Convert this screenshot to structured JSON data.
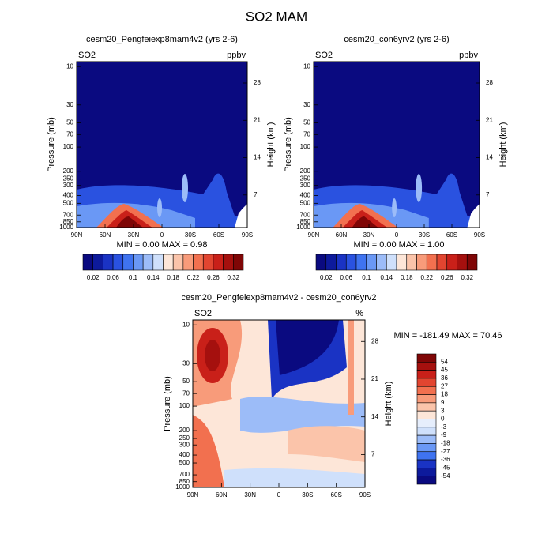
{
  "title": "SO2 MAM",
  "chart_data": [
    {
      "type": "contour",
      "title": "cesm20_Pengfeiexp8mam4v2 (yrs 2-6)",
      "left_label": "SO2",
      "right_label": "ppbv",
      "ylabel": "Pressure (mb)",
      "y2label": "Height (km)",
      "min_max": "MIN =   0.00  MAX =   0.98",
      "xlim": [
        90,
        -90
      ],
      "xticks": [
        {
          "value": 90,
          "label": "90N"
        },
        {
          "value": 60,
          "label": "60N"
        },
        {
          "value": 30,
          "label": "30N"
        },
        0,
        {
          "value": -30,
          "label": "30S"
        },
        {
          "value": -60,
          "label": "60S"
        },
        {
          "value": -90,
          "label": "90S"
        }
      ],
      "ylim": [
        1000,
        8.7
      ],
      "log_scale": true,
      "yticks": [
        10,
        30,
        50,
        70,
        100,
        200,
        250,
        300,
        400,
        500,
        700,
        850,
        1000
      ],
      "y2lim": [
        0.9,
        32
      ],
      "y2ticks": [
        7,
        14,
        21,
        28
      ],
      "levels": [
        0.02,
        0.06,
        0.1,
        0.14,
        0.18,
        0.22,
        0.26,
        0.32
      ],
      "colors": [
        "#0a0a80",
        "#0d1a9c",
        "#1a33c4",
        "#2a52e0",
        "#3f73f0",
        "#6a98f5",
        "#9cbcf8",
        "#cfe0fb",
        "#fde6d8",
        "#fbc4aa",
        "#f89b7a",
        "#f2704f",
        "#e24530",
        "#c92019",
        "#a5100e",
        "#7f0606"
      ]
    },
    {
      "type": "contour",
      "title": "cesm20_con6yrv2 (yrs 2-6)",
      "left_label": "SO2",
      "right_label": "ppbv",
      "ylabel": "Pressure (mb)",
      "y2label": "Height (km)",
      "min_max": "MIN =   0.00  MAX =   1.00",
      "xlim": [
        90,
        -90
      ],
      "xticks": [
        {
          "value": 90,
          "label": "90N"
        },
        {
          "value": 60,
          "label": "60N"
        },
        {
          "value": 30,
          "label": "30N"
        },
        0,
        {
          "value": -30,
          "label": "30S"
        },
        {
          "value": -60,
          "label": "60S"
        },
        {
          "value": -90,
          "label": "90S"
        }
      ],
      "ylim": [
        1000,
        8.7
      ],
      "log_scale": true,
      "yticks": [
        10,
        30,
        50,
        70,
        100,
        200,
        250,
        300,
        400,
        500,
        700,
        850,
        1000
      ],
      "y2lim": [
        0.9,
        32
      ],
      "y2ticks": [
        7,
        14,
        21,
        28
      ],
      "levels": [
        0.02,
        0.06,
        0.1,
        0.14,
        0.18,
        0.22,
        0.26,
        0.32
      ],
      "colors": [
        "#0a0a80",
        "#0d1a9c",
        "#1a33c4",
        "#2a52e0",
        "#3f73f0",
        "#6a98f5",
        "#9cbcf8",
        "#cfe0fb",
        "#fde6d8",
        "#fbc4aa",
        "#f89b7a",
        "#f2704f",
        "#e24530",
        "#c92019",
        "#a5100e",
        "#7f0606"
      ]
    },
    {
      "type": "contour",
      "title": "cesm20_Pengfeiexp8mam4v2 - cesm20_con6yrv2",
      "left_label": "SO2",
      "right_label": "%",
      "ylabel": "Pressure (mb)",
      "y2label": "Height (km)",
      "min_max": "MIN = -181.49  MAX =  70.46",
      "xlim": [
        90,
        -90
      ],
      "xticks": [
        {
          "value": 90,
          "label": "90N"
        },
        {
          "value": 60,
          "label": "60N"
        },
        {
          "value": 30,
          "label": "30N"
        },
        0,
        {
          "value": -30,
          "label": "30S"
        },
        {
          "value": -60,
          "label": "60S"
        },
        {
          "value": -90,
          "label": "90S"
        }
      ],
      "ylim": [
        1000,
        8.7
      ],
      "log_scale": true,
      "yticks": [
        10,
        30,
        50,
        70,
        100,
        200,
        250,
        300,
        400,
        500,
        700,
        850,
        1000
      ],
      "y2lim": [
        0.9,
        32
      ],
      "y2ticks": [
        7,
        14,
        21,
        28
      ],
      "levels": [
        54,
        45,
        36,
        27,
        18,
        9,
        3,
        0,
        -3,
        -9,
        -18,
        -27,
        -36,
        -45,
        -54
      ],
      "colors": [
        "#7f0606",
        "#a5100e",
        "#c92019",
        "#e24530",
        "#f2704f",
        "#f89b7a",
        "#fbc4aa",
        "#fde6d8",
        "#e6eefc",
        "#cfe0fb",
        "#9cbcf8",
        "#6a98f5",
        "#3f73f0",
        "#1a33c4",
        "#0d1a9c",
        "#0a0a80"
      ]
    }
  ]
}
